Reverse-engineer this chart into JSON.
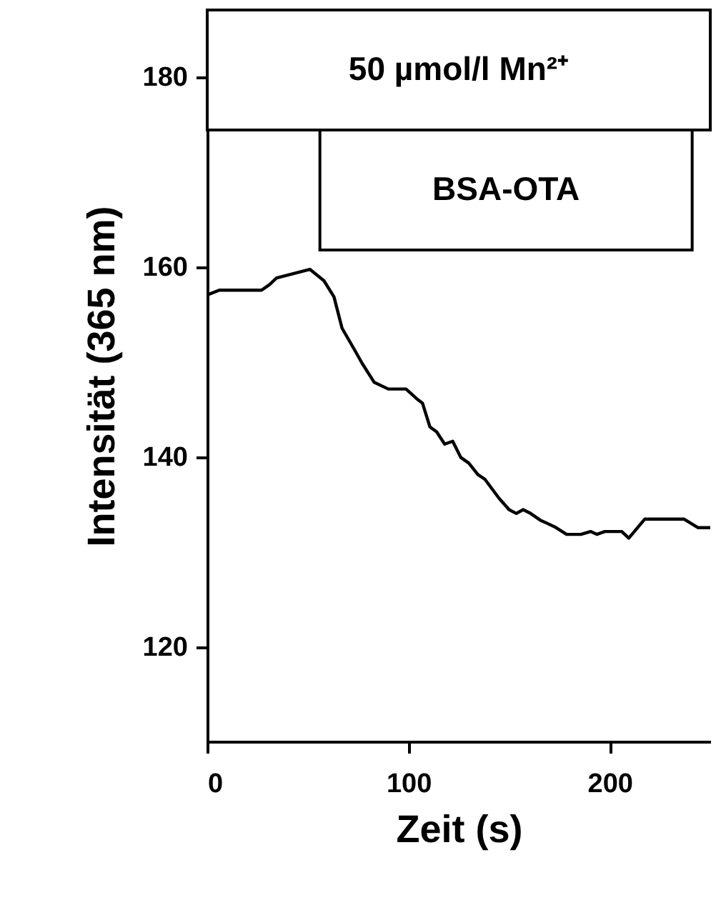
{
  "chart_data": {
    "type": "line",
    "xlabel": "Zeit (s)",
    "ylabel": "Intensität (365 nm)",
    "xlim": [
      0,
      250
    ],
    "xticks": [
      0,
      100,
      200
    ],
    "ylim": [
      110,
      187
    ],
    "yticks": [
      120,
      140,
      160,
      180
    ],
    "x": [
      0,
      6,
      27,
      31,
      34.5,
      51,
      58,
      63,
      67,
      73,
      77,
      83,
      90,
      98.8,
      104,
      107,
      110.7,
      114,
      118,
      122,
      126,
      130,
      134.5,
      138,
      145,
      150,
      153.6,
      157,
      160.7,
      165.5,
      172.6,
      178.6,
      185.7,
      190.5,
      193.6,
      197.6,
      206,
      209.5,
      217.4,
      237,
      244,
      250
    ],
    "series": [
      {
        "color": "#000000",
        "values": [
          157.0,
          157.5,
          157.5,
          158.1,
          158.8,
          159.7,
          158.5,
          156.8,
          153.5,
          151.3,
          149.8,
          147.8,
          147.1,
          147.1,
          146.1,
          145.6,
          143.1,
          142.6,
          141.3,
          141.6,
          139.9,
          139.3,
          138.1,
          137.6,
          135.6,
          134.4,
          134.0,
          134.4,
          134.0,
          133.3,
          132.6,
          131.8,
          131.8,
          132.1,
          131.8,
          132.1,
          132.1,
          131.4,
          133.4,
          133.4,
          132.5,
          132.5
        ]
      }
    ],
    "annotations": [
      "50 µmol/l Mn²⁺"
    ],
    "bands": [
      {
        "axis": "x",
        "from": 56,
        "to": 241,
        "label": "BSA-OTA"
      }
    ],
    "grid": false,
    "marker": "none",
    "line_style": "solid"
  }
}
